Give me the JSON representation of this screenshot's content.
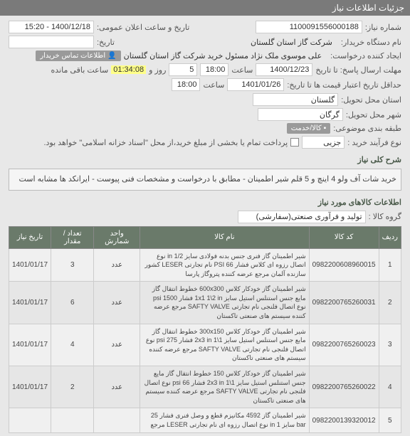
{
  "header": {
    "title": "جزئیات اطلاعات نیاز"
  },
  "fields": {
    "need_no_label": "شماره نیاز:",
    "need_no": "1100091556000188",
    "public_date_label": "تاریخ و ساعت اعلان عمومی:",
    "public_date": "1400/12/18 - 15:20",
    "buyer_org_label": "نام دستگاه خریدار:",
    "buyer_org": "شرکت گاز استان گلستان",
    "date2_label": "تاریخ:",
    "creator_label": "ایجاد کننده درخواست:",
    "creator": "علی موسوی ملک نژاد مسئول خرید شرکت گاز استان گلستان",
    "contact_chip": "اطلاعات تماس خریدار",
    "deadline_label": "مهلت ارسال پاسخ: تا تاریخ",
    "deadline_date": "1400/12/23",
    "deadline_hour_label": "ساعت",
    "deadline_hour": "18:00",
    "remain_days": "5",
    "remain_days_label": "روز و",
    "remain_time": "01:34:08",
    "remain_time_label": "ساعت باقی مانده",
    "valid_label": "حداقل تاریخ اعتبار قیمت ها تا تاریخ:",
    "valid_date": "1401/01/26",
    "valid_hour_label": "ساعت",
    "valid_hour": "18:00",
    "province_label": "استان محل تحویل:",
    "province": "گلستان",
    "city_label": "شهر محل تحویل:",
    "city": "گرگان",
    "budget_label": "طبقه بندی موضوعی:",
    "kala_chip": "کالا/خدمت",
    "buy_type_label": "نوع فرآیند خرید :",
    "buy_type": "جزیی",
    "pay_note": "پرداخت تمام یا بخشی از مبلغ خرید،از محل \"اسناد خزانه اسلامی\" خواهد بود.",
    "desc_label": "شرح کلی نیاز",
    "desc": "خرید شات آف ولو 4  اینچ و 5 قلم شیر اطمینان - مطابق با درخواست و مشخصات فنی پیوست  - ایرانکد ها مشابه است",
    "items_label": "اطلاعات کالاهای مورد نیاز",
    "group_label": "گروه کالا :",
    "group": "تولید و فرآوری صنعتی(سفارشی)"
  },
  "table": {
    "headers": [
      "ردیف",
      "کد کالا",
      "نام کالا",
      "واحد شمارش",
      "تعداد / مقدار",
      "تاریخ نیاز"
    ],
    "rows": [
      {
        "n": "1",
        "code": "0982200608960015",
        "name": "شیر اطمینان گاز فنری جنس بدنه فولادی سایز 1/2 in نوع اتصال رزوه ای کلاس فشار PSI 66 نام تجارتی LESER کشور سازنده آلمان مرجع عرضه کننده پتروگاز پارسا",
        "unit": "عدد",
        "qty": "3",
        "date": "1401/01/17"
      },
      {
        "n": "2",
        "code": "0982200765260031",
        "name": "شیر اطمینان گاز خودکار کلاس 600x300 خطوط انتقال گاز مایع جنس استنلس استیل سایز 1x1 1\\2 in فشار 1500 psi نوع اتصال فلنجی نام تجارتی SAFTY VALVE مرجع عرضه کننده سیستم های صنعتی تاکستان",
        "unit": "عدد",
        "qty": "6",
        "date": "1401/01/17"
      },
      {
        "n": "3",
        "code": "0982200765260023",
        "name": "شیر اطمینان گاز خودکار کلاس 300x150 خطوط انتقال گاز مایع جنس استنلس استیل سایز 1\\1 2x3 in فشار 275 psi نوع اتصال فلنجی نام تجارتی SAFTY VALVE مرجع عرضه کننده سیستم های صنعتی تاکستان",
        "unit": "عدد",
        "qty": "4",
        "date": "1401/01/17"
      },
      {
        "n": "4",
        "code": "0982200765260022",
        "name": "شیر اطمینان گاز خودکار کلاس 150 خطوط انتقال گاز مایع جنس استنلس استیل سایز 1\\1 2x3 in فشار 66 psi نوع اتصال فلنجی نام تجارتی SAFTY VALVE مرجع عرضه کننده سیستم های صنعتی تاکستان",
        "unit": "عدد",
        "qty": "2",
        "date": "1401/01/17"
      },
      {
        "n": "5",
        "code": "0982200139320012",
        "name": "شیر اطمینان گاز 4592 مکانیزم قطع و وصل فنری فشار 25 bar سایز 1 in نوع اتصال رزوه ای نام تجارتی LESER مرجع",
        "unit": "",
        "qty": "",
        "date": ""
      }
    ]
  }
}
